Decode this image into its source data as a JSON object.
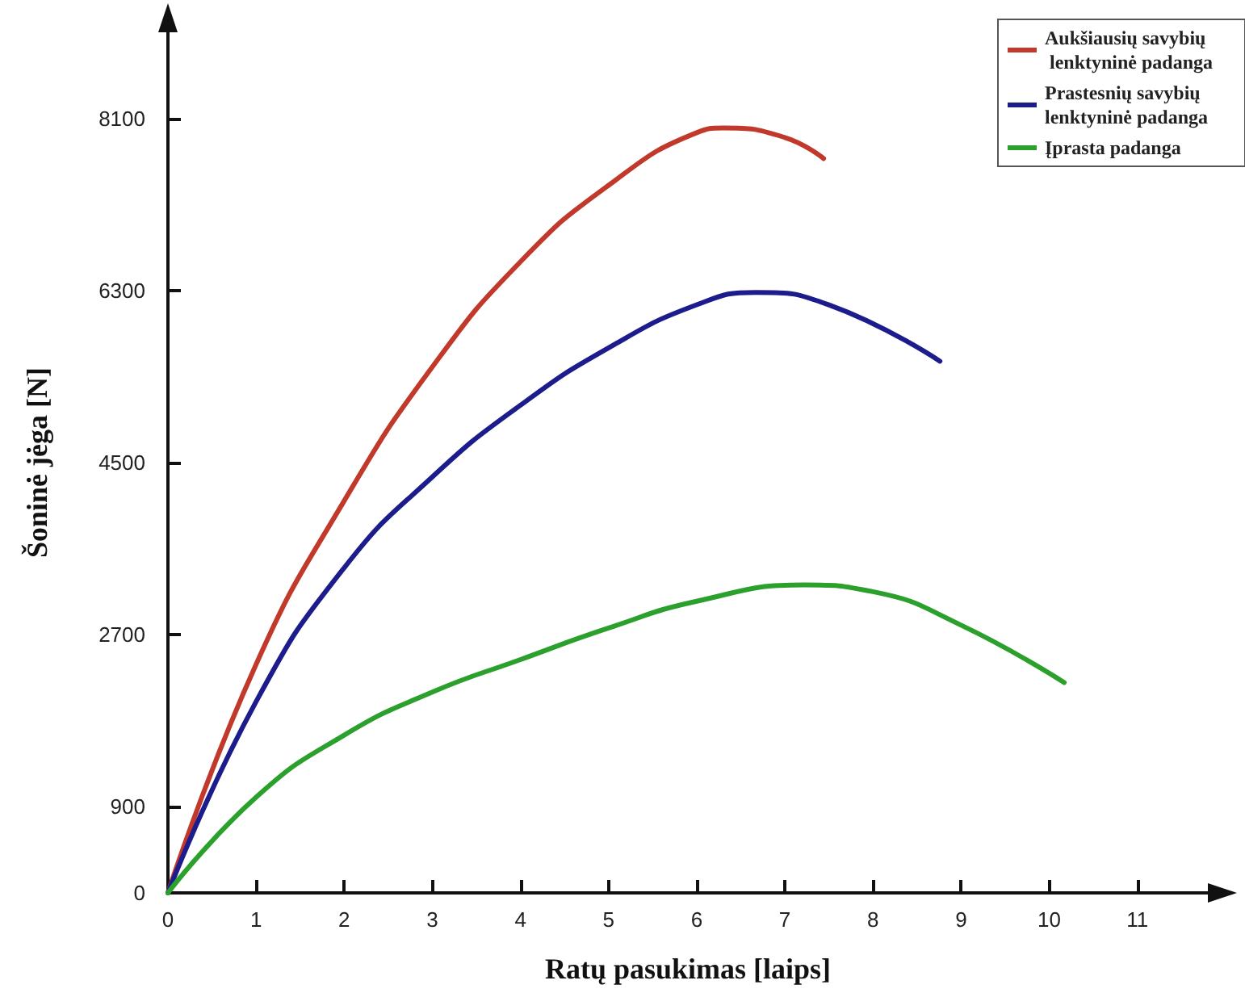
{
  "chart_data": {
    "type": "line",
    "xlabel": "Ratų pasukimas [laips]",
    "ylabel": "Šoninė jėga [N]",
    "xlim": [
      0,
      11.8
    ],
    "xticks": [
      0,
      1,
      2,
      3,
      4,
      5,
      6,
      7,
      8,
      9,
      10,
      11
    ],
    "ylim": [
      0,
      9000
    ],
    "yticks": [
      0,
      900,
      2700,
      4500,
      6300,
      8100
    ],
    "grid": false,
    "legend": "top right",
    "marker": "none",
    "line_style": "solid",
    "series": [
      {
        "name": "Aukšiausių savybių lenktyninė padanga",
        "color": "#c0392b",
        "x": [
          0,
          1,
          2,
          3,
          4,
          5,
          6,
          6.3,
          7,
          7.44
        ],
        "values": [
          0,
          2390,
          4100,
          5500,
          6600,
          7400,
          7950,
          8000,
          7900,
          7680
        ]
      },
      {
        "name": "Prastesnių savybių lenktyninė padanga",
        "color": "#1c1c8c",
        "x": [
          0,
          1,
          2,
          3,
          4,
          5,
          6,
          6.67,
          7.5,
          8.76
        ],
        "values": [
          0,
          2000,
          3400,
          4350,
          5100,
          5700,
          6150,
          6280,
          6150,
          5560
        ]
      },
      {
        "name": "Įprasta padanga",
        "color": "#2ca02c",
        "x": [
          0,
          1,
          2,
          3,
          4,
          5,
          6,
          7.22,
          8,
          9,
          10.17
        ],
        "values": [
          0,
          1000,
          1650,
          2100,
          2440,
          2770,
          3050,
          3220,
          3150,
          2800,
          2200
        ]
      }
    ]
  }
}
